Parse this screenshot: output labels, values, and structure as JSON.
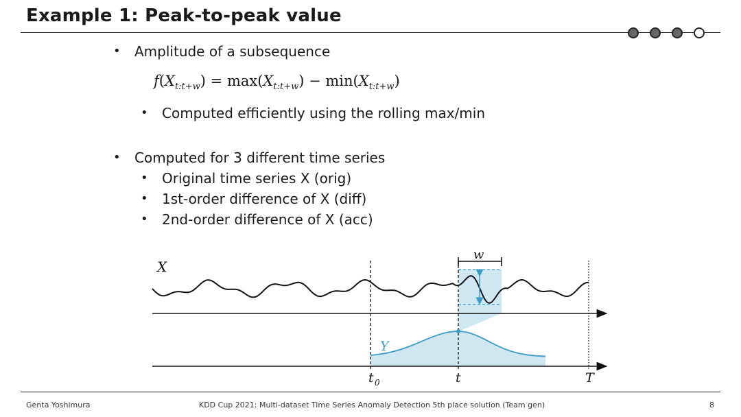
{
  "slide": {
    "title": "Example 1: Peak-to-peak value",
    "page_number": "8",
    "author": "Genta Yoshimura",
    "footer_center": "KDD Cup 2021: Multi-dataset Time Series Anomaly Detection 5th place solution (Team gen)",
    "progress_dots": {
      "filled": 3,
      "total": 4
    }
  },
  "bullets": {
    "amplitude": "Amplitude of a subsequence",
    "formula": {
      "f": "f",
      "X": "X",
      "sub": "t:t+w",
      "eq": " = max(",
      "mid": ") − min(",
      "close": ")"
    },
    "rolling": "Computed efficiently using the rolling max/min",
    "computed_for": "Computed for 3 different time series",
    "items": [
      "Original time series X (orig)",
      "1st-order difference of X (diff)",
      "2nd-order difference of X (acc)"
    ]
  },
  "diagram": {
    "label_x": "X",
    "label_y": "Y",
    "label_w": "w",
    "label_t0": "t",
    "label_t0_sub": "0",
    "label_t": "t",
    "label_T": "T",
    "colors": {
      "line": "#111111",
      "accent": "#3a9cc4",
      "fill": "#cfe7f1"
    }
  }
}
